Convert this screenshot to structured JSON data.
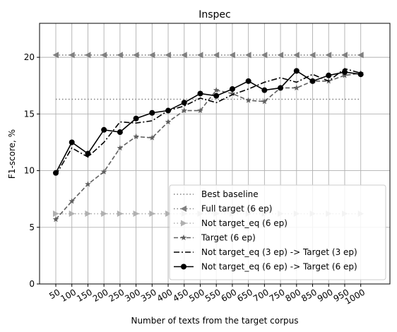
{
  "chart_data": {
    "type": "line",
    "title": "Inspec",
    "xlabel": "Number of texts from the target corpus",
    "ylabel": "F1-score, %",
    "ylim": [
      0,
      23
    ],
    "yticks": [
      0,
      5,
      10,
      15,
      20
    ],
    "grid": true,
    "legend_position": "lower-right",
    "categories": [
      "50",
      "100",
      "150",
      "200",
      "250",
      "300",
      "350",
      "400",
      "450",
      "500",
      "550",
      "600",
      "650",
      "700",
      "750",
      "800",
      "850",
      "900",
      "950",
      "1000"
    ],
    "series": [
      {
        "name": "Best baseline",
        "style": "dotted",
        "color": "#808080",
        "marker": "none",
        "values": [
          16.3,
          16.3,
          16.3,
          16.3,
          16.3,
          16.3,
          16.3,
          16.3,
          16.3,
          16.3,
          16.3,
          16.3,
          16.3,
          16.3,
          16.3,
          16.3,
          16.3,
          16.3,
          16.3,
          16.3
        ]
      },
      {
        "name": "Full target (6 ep)",
        "style": "dotted",
        "color": "#808080",
        "marker": "triangle-left",
        "values": [
          20.2,
          20.2,
          20.2,
          20.2,
          20.2,
          20.2,
          20.2,
          20.2,
          20.2,
          20.2,
          20.2,
          20.2,
          20.2,
          20.2,
          20.2,
          20.2,
          20.2,
          20.2,
          20.2,
          20.2
        ]
      },
      {
        "name": "Not target_eq (6 ep)",
        "style": "dotted",
        "color": "#b0b0b0",
        "marker": "triangle-right",
        "values": [
          6.2,
          6.2,
          6.2,
          6.2,
          6.2,
          6.2,
          6.2,
          6.2,
          6.2,
          6.2,
          6.2,
          6.2,
          6.2,
          6.2,
          6.2,
          6.2,
          6.2,
          6.2,
          6.2,
          6.2
        ]
      },
      {
        "name": "Target (6 ep)",
        "style": "dashed",
        "color": "#606060",
        "marker": "star",
        "values": [
          5.7,
          7.3,
          8.8,
          9.9,
          12.0,
          13.0,
          12.9,
          14.3,
          15.3,
          15.3,
          17.1,
          16.8,
          16.2,
          16.1,
          17.3,
          17.3,
          17.9,
          17.9,
          18.4,
          18.6
        ]
      },
      {
        "name": "Not target_eq (3 ep) -> Target (3 ep)",
        "style": "dashdot",
        "color": "#000000",
        "marker": "none",
        "values": [
          9.6,
          12.0,
          11.2,
          12.5,
          14.3,
          14.2,
          14.4,
          15.3,
          15.7,
          16.4,
          16.0,
          16.7,
          17.2,
          17.8,
          18.2,
          17.8,
          18.5,
          17.9,
          19.0,
          18.6
        ]
      },
      {
        "name": "Not target_eq (6 ep) -> Target (6 ep)",
        "style": "solid",
        "color": "#000000",
        "marker": "circle",
        "values": [
          9.8,
          12.5,
          11.5,
          13.6,
          13.4,
          14.6,
          15.1,
          15.3,
          16.0,
          16.8,
          16.6,
          17.2,
          17.9,
          17.1,
          17.3,
          18.8,
          17.9,
          18.4,
          18.7,
          18.5
        ]
      }
    ]
  }
}
